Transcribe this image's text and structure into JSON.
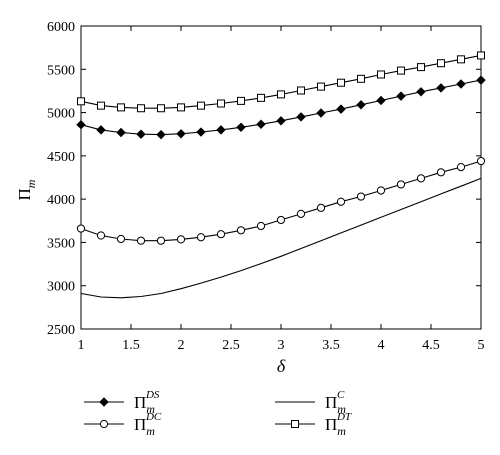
{
  "chart_data": {
    "type": "line",
    "xlabel": "δ",
    "ylabel": "Π",
    "ylabel_sub": "m",
    "xlim": [
      1,
      5
    ],
    "ylim": [
      2500,
      6000
    ],
    "xticks": [
      "1",
      "1.5",
      "2",
      "2.5",
      "3",
      "3.5",
      "4",
      "4.5",
      "5"
    ],
    "yticks": [
      "2500",
      "3000",
      "3500",
      "4000",
      "4500",
      "5000",
      "5500",
      "6000"
    ],
    "grid": false,
    "legend_position": "bottom",
    "x": [
      1.0,
      1.2,
      1.4,
      1.6,
      1.8,
      2.0,
      2.2,
      2.4,
      2.6,
      2.8,
      3.0,
      3.2,
      3.4,
      3.6,
      3.8,
      4.0,
      4.2,
      4.4,
      4.6,
      4.8,
      5.0
    ],
    "series": [
      {
        "name": "Π",
        "name_sub": "m",
        "name_sup": "DS",
        "marker": "diamond",
        "values": [
          4860,
          4800,
          4770,
          4750,
          4745,
          4755,
          4775,
          4800,
          4830,
          4865,
          4905,
          4950,
          4995,
          5040,
          5090,
          5140,
          5190,
          5240,
          5285,
          5330,
          5375
        ]
      },
      {
        "name": "Π",
        "name_sub": "m",
        "name_sup": "DC",
        "marker": "circle",
        "values": [
          3660,
          3580,
          3540,
          3520,
          3520,
          3535,
          3560,
          3595,
          3640,
          3690,
          3760,
          3830,
          3900,
          3970,
          4030,
          4100,
          4170,
          4240,
          4310,
          4370,
          4440
        ]
      },
      {
        "name": "Π",
        "name_sub": "m",
        "name_sup": "C",
        "marker": "none",
        "values": [
          2910,
          2870,
          2860,
          2875,
          2910,
          2965,
          3030,
          3100,
          3175,
          3255,
          3340,
          3430,
          3520,
          3610,
          3700,
          3790,
          3880,
          3970,
          4060,
          4150,
          4240
        ]
      },
      {
        "name": "Π",
        "name_sub": "m",
        "name_sup": "DT",
        "marker": "square",
        "values": [
          5130,
          5080,
          5060,
          5050,
          5050,
          5060,
          5080,
          5105,
          5135,
          5170,
          5210,
          5255,
          5300,
          5345,
          5390,
          5440,
          5485,
          5525,
          5570,
          5615,
          5660
        ]
      }
    ]
  }
}
